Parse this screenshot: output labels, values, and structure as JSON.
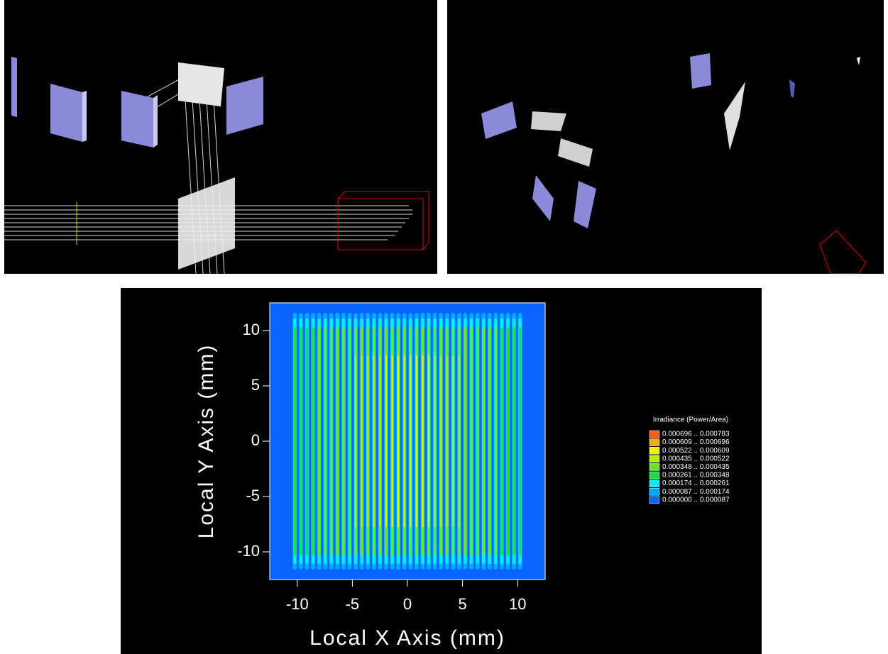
{
  "chart_data": {
    "type": "contour",
    "xlabel": "Local X Axis (mm)",
    "ylabel": "Local Y Axis (mm)",
    "xlim": [
      -12.5,
      12.5
    ],
    "ylim": [
      -12.5,
      12.5
    ],
    "xticks": [
      -10,
      -5,
      0,
      5,
      10
    ],
    "yticks": [
      -10,
      -5,
      0,
      5,
      10
    ],
    "background": "#0a64ff",
    "legend": {
      "title": "Irradiance (Power/Area)",
      "entries": [
        {
          "label": "0.000696 .. 0.000783",
          "color": "#ff5a1e"
        },
        {
          "label": "0.000609 .. 0.000696",
          "color": "#ffa800"
        },
        {
          "label": "0.000522 .. 0.000609",
          "color": "#f0f000"
        },
        {
          "label": "0.000435 .. 0.000522",
          "color": "#b4f000"
        },
        {
          "label": "0.000348 .. 0.000435",
          "color": "#6ee61e"
        },
        {
          "label": "0.000261 .. 0.000348",
          "color": "#1edc3c"
        },
        {
          "label": "0.000174 .. 0.000261",
          "color": "#00f0f0"
        },
        {
          "label": "0.000087 .. 0.000174",
          "color": "#00a8ff"
        },
        {
          "label": "0.000000 .. 0.000087",
          "color": "#0a64ff"
        }
      ]
    }
  }
}
